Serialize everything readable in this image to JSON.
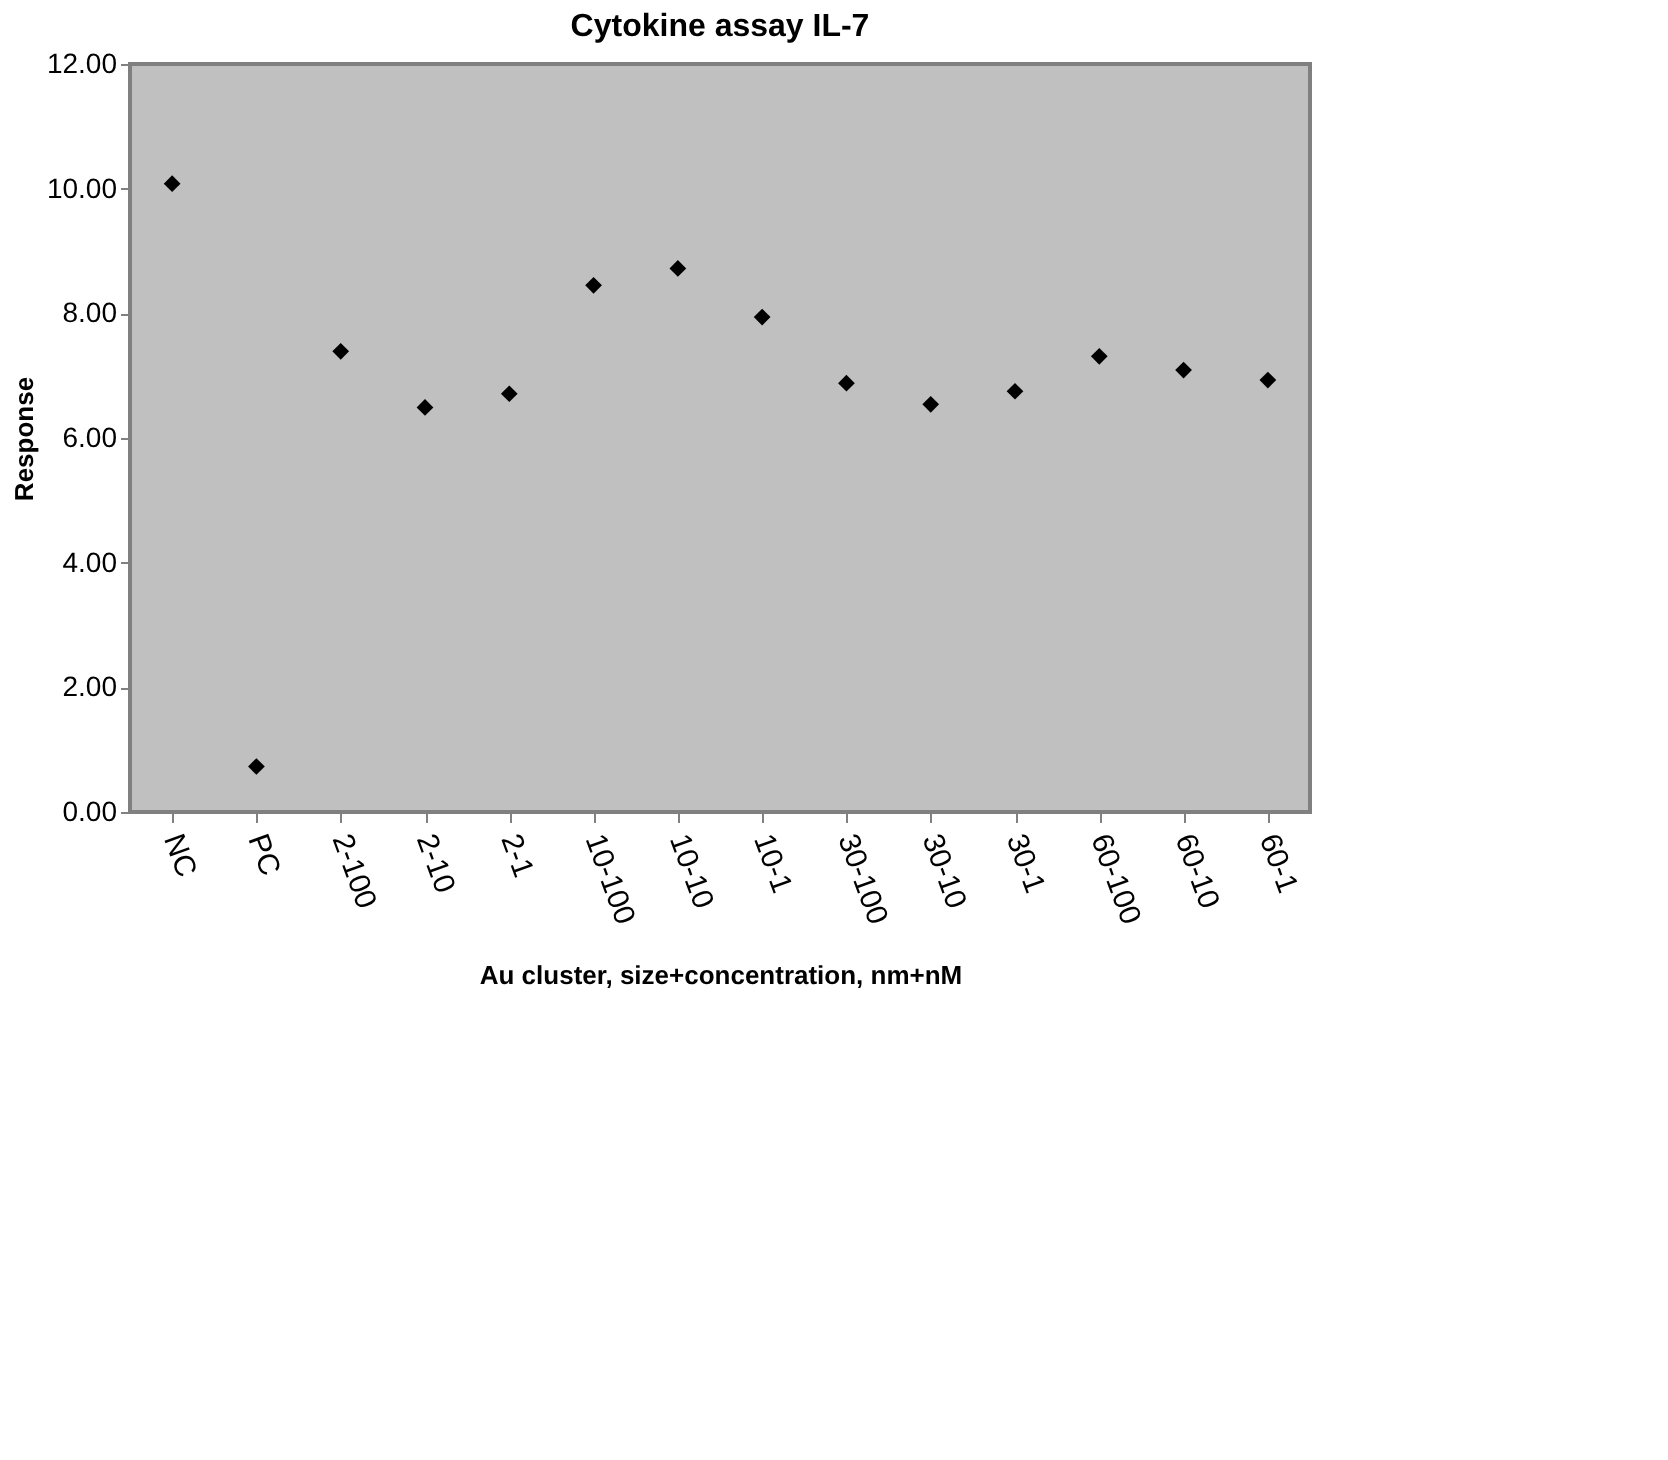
{
  "chart_data": {
    "type": "scatter",
    "title": "Cytokine assay IL-7",
    "xlabel": "Au cluster, size+concentration, nm+nM",
    "ylabel": "Response",
    "categories": [
      "NC",
      "PC",
      "2-100",
      "2-10",
      "2-1",
      "10-100",
      "10-10",
      "10-1",
      "30-100",
      "30-10",
      "30-1",
      "60-100",
      "60-10",
      "60-1"
    ],
    "values": [
      10.08,
      0.73,
      7.39,
      6.49,
      6.71,
      8.45,
      8.72,
      7.94,
      6.88,
      6.54,
      6.75,
      7.31,
      7.09,
      6.93
    ],
    "color": "#000000",
    "marker": "diamond",
    "grid": false,
    "ylim": [
      0,
      12
    ],
    "yticks": [
      {
        "value": 0,
        "label": "0.00"
      },
      {
        "value": 2,
        "label": "2.00"
      },
      {
        "value": 4,
        "label": "4.00"
      },
      {
        "value": 6,
        "label": "6.00"
      },
      {
        "value": 8,
        "label": "8.00"
      },
      {
        "value": 10,
        "label": "10.00"
      },
      {
        "value": 12,
        "label": "12.00"
      }
    ]
  }
}
